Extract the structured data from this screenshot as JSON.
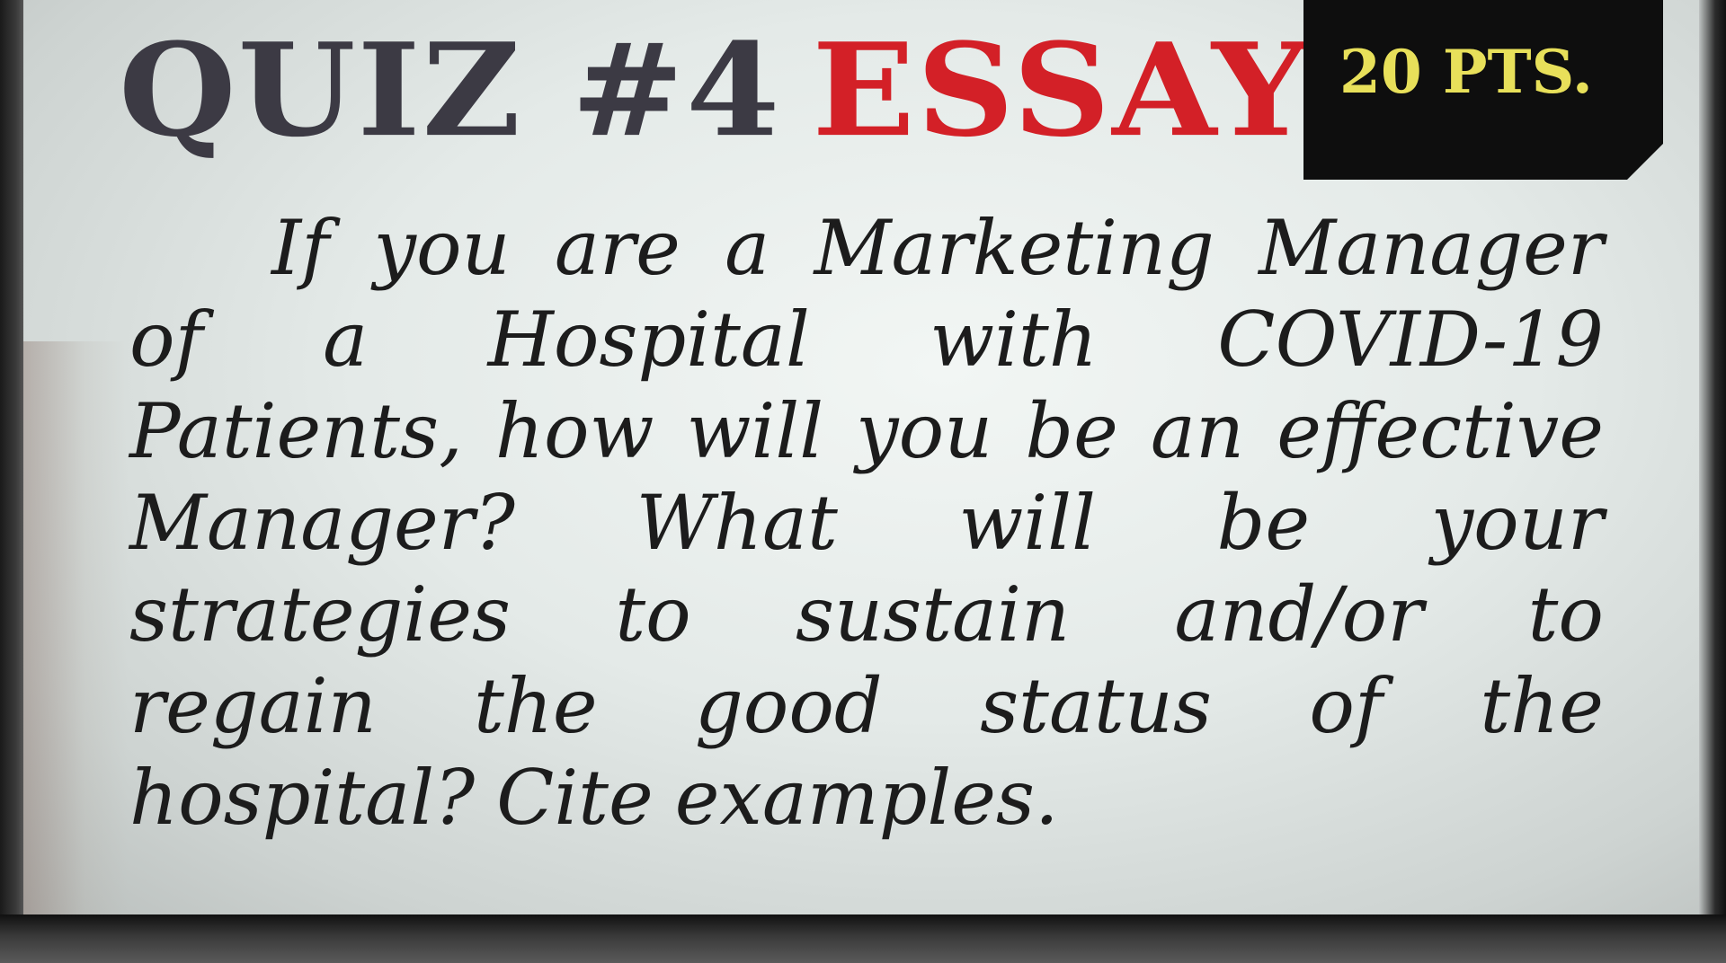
{
  "slide": {
    "title_quiz": "QUIZ #4",
    "title_essay": "ESSAY",
    "points_badge": "20 PTS.",
    "colors": {
      "title_dark": "#3c3a44",
      "title_red": "#d32027",
      "badge_background": "#0e0e0e",
      "badge_text": "#e8e05a",
      "screen_background": "#e4eae8",
      "body_text": "#1c1c1c"
    },
    "question_lines": [
      [
        "If",
        "you",
        "are",
        "a",
        "Marketing",
        "Manager"
      ],
      [
        "of",
        "a",
        "Hospital",
        "with",
        "COVID-19"
      ],
      [
        "Patients,",
        "how",
        "will",
        "you",
        "be",
        "an",
        "effective"
      ],
      [
        "Manager?",
        "What",
        "will",
        "be",
        "your"
      ],
      [
        "strategies",
        "to",
        "sustain",
        "and/or",
        "to"
      ],
      [
        "regain",
        "the",
        "good",
        "status",
        "of",
        "the"
      ],
      [
        "hospital?",
        "Cite",
        "examples."
      ]
    ]
  }
}
